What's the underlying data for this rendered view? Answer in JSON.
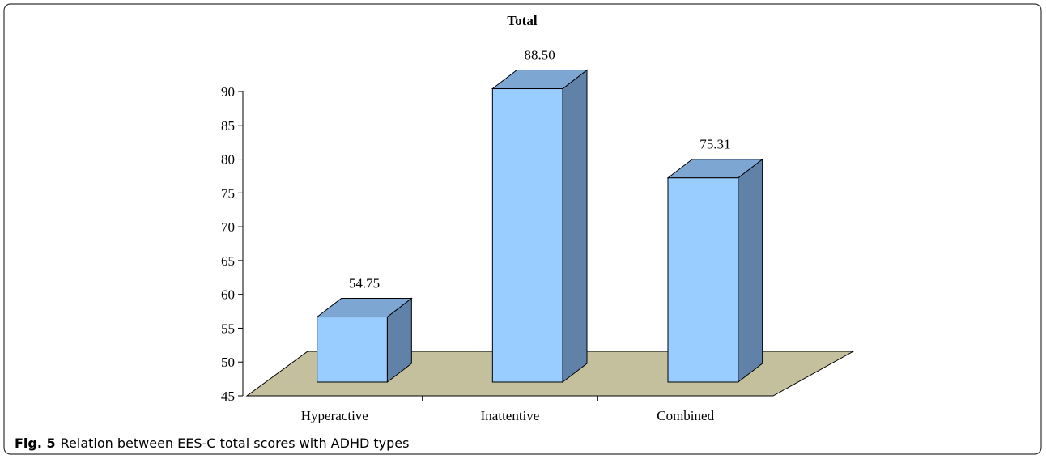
{
  "chart_data": {
    "type": "bar3d",
    "title": "Total",
    "categories": [
      "Hyperactive",
      "Inattentive",
      "Combined"
    ],
    "values": [
      54.75,
      88.5,
      75.31
    ],
    "value_labels": [
      "54.75",
      "88.50",
      "75.31"
    ],
    "color": "#99ccff",
    "side_color": "#6182a8",
    "top_color": "#7ea6d3",
    "floor_color": "#c4c09e",
    "ylim": [
      45,
      90
    ],
    "yticks": [
      45,
      50,
      55,
      60,
      65,
      70,
      75,
      80,
      85,
      90
    ]
  },
  "caption": {
    "label": "Fig. 5",
    "text": "Relation between EES-C total scores with ADHD types"
  }
}
